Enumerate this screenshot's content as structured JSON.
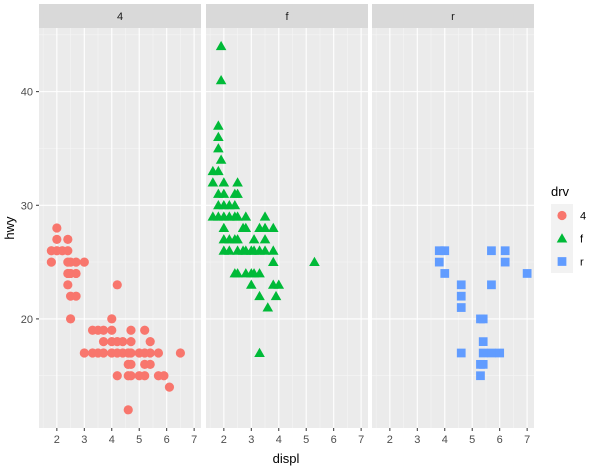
{
  "chart_data": {
    "type": "scatter",
    "xlabel": "displ",
    "ylabel": "hwy",
    "xlim": [
      1.35,
      7.25
    ],
    "ylim": [
      10.4,
      45.6
    ],
    "x_ticks": [
      2,
      3,
      4,
      5,
      6,
      7
    ],
    "x_tick_labels": [
      "2",
      "3",
      "4",
      "5",
      "6",
      "7"
    ],
    "y_ticks": [
      20,
      30,
      40
    ],
    "y_tick_labels": [
      "20",
      "30",
      "40"
    ],
    "grid": true,
    "facet_by": "drv",
    "panels": [
      {
        "label": "4",
        "color": "#F8766D",
        "shape": "circle",
        "points": [
          [
            1.8,
            26
          ],
          [
            1.8,
            25
          ],
          [
            2.0,
            28
          ],
          [
            2.0,
            27
          ],
          [
            2.0,
            26
          ],
          [
            2.2,
            26
          ],
          [
            2.4,
            27
          ],
          [
            2.4,
            26
          ],
          [
            2.4,
            25
          ],
          [
            2.4,
            24
          ],
          [
            2.4,
            23
          ],
          [
            2.5,
            25
          ],
          [
            2.5,
            24
          ],
          [
            2.5,
            22
          ],
          [
            2.5,
            20
          ],
          [
            2.7,
            25
          ],
          [
            2.7,
            24
          ],
          [
            2.7,
            22
          ],
          [
            3.0,
            25
          ],
          [
            3.0,
            17
          ],
          [
            3.3,
            19
          ],
          [
            3.3,
            17
          ],
          [
            3.5,
            19
          ],
          [
            3.5,
            17
          ],
          [
            3.7,
            19
          ],
          [
            3.7,
            18
          ],
          [
            3.7,
            17
          ],
          [
            4.0,
            20
          ],
          [
            4.0,
            19
          ],
          [
            4.0,
            18
          ],
          [
            4.0,
            17
          ],
          [
            4.2,
            23
          ],
          [
            4.2,
            18
          ],
          [
            4.2,
            17
          ],
          [
            4.2,
            15
          ],
          [
            4.4,
            18
          ],
          [
            4.4,
            17
          ],
          [
            4.6,
            17
          ],
          [
            4.6,
            16
          ],
          [
            4.6,
            15
          ],
          [
            4.6,
            12
          ],
          [
            4.7,
            19
          ],
          [
            4.7,
            18
          ],
          [
            4.7,
            17
          ],
          [
            4.7,
            16
          ],
          [
            4.7,
            15
          ],
          [
            5.0,
            17
          ],
          [
            5.0,
            15
          ],
          [
            5.2,
            19
          ],
          [
            5.2,
            17
          ],
          [
            5.2,
            16
          ],
          [
            5.2,
            15
          ],
          [
            5.4,
            18
          ],
          [
            5.4,
            17
          ],
          [
            5.4,
            16
          ],
          [
            5.7,
            17
          ],
          [
            5.7,
            15
          ],
          [
            5.9,
            15
          ],
          [
            6.1,
            14
          ],
          [
            6.5,
            17
          ]
        ]
      },
      {
        "label": "f",
        "color": "#00BA38",
        "shape": "triangle",
        "points": [
          [
            1.6,
            33
          ],
          [
            1.6,
            32
          ],
          [
            1.6,
            29
          ],
          [
            1.8,
            37
          ],
          [
            1.8,
            36
          ],
          [
            1.8,
            35
          ],
          [
            1.8,
            33
          ],
          [
            1.8,
            31
          ],
          [
            1.8,
            30
          ],
          [
            1.8,
            29
          ],
          [
            1.9,
            44
          ],
          [
            1.9,
            41
          ],
          [
            1.9,
            34
          ],
          [
            2.0,
            32
          ],
          [
            2.0,
            31
          ],
          [
            2.0,
            30
          ],
          [
            2.0,
            29
          ],
          [
            2.0,
            28
          ],
          [
            2.0,
            27
          ],
          [
            2.0,
            26
          ],
          [
            2.2,
            30
          ],
          [
            2.2,
            29
          ],
          [
            2.2,
            27
          ],
          [
            2.2,
            26
          ],
          [
            2.4,
            31
          ],
          [
            2.4,
            30
          ],
          [
            2.4,
            29
          ],
          [
            2.4,
            27
          ],
          [
            2.4,
            24
          ],
          [
            2.5,
            32
          ],
          [
            2.5,
            31
          ],
          [
            2.5,
            29
          ],
          [
            2.5,
            27
          ],
          [
            2.5,
            26
          ],
          [
            2.5,
            24
          ],
          [
            2.7,
            28
          ],
          [
            2.7,
            26
          ],
          [
            2.8,
            29
          ],
          [
            2.8,
            28
          ],
          [
            2.8,
            26
          ],
          [
            2.8,
            24
          ],
          [
            3.0,
            26
          ],
          [
            3.0,
            24
          ],
          [
            3.0,
            23
          ],
          [
            3.1,
            27
          ],
          [
            3.1,
            26
          ],
          [
            3.1,
            24
          ],
          [
            3.3,
            28
          ],
          [
            3.3,
            26
          ],
          [
            3.3,
            24
          ],
          [
            3.3,
            22
          ],
          [
            3.3,
            17
          ],
          [
            3.5,
            29
          ],
          [
            3.5,
            28
          ],
          [
            3.5,
            27
          ],
          [
            3.5,
            26
          ],
          [
            3.6,
            21
          ],
          [
            3.8,
            28
          ],
          [
            3.8,
            26
          ],
          [
            3.8,
            25
          ],
          [
            3.8,
            23
          ],
          [
            3.9,
            22
          ],
          [
            4.0,
            23
          ],
          [
            5.3,
            25
          ]
        ]
      },
      {
        "label": "r",
        "color": "#619CFF",
        "shape": "square",
        "points": [
          [
            3.8,
            26
          ],
          [
            3.8,
            25
          ],
          [
            4.0,
            26
          ],
          [
            4.0,
            24
          ],
          [
            4.6,
            23
          ],
          [
            4.6,
            22
          ],
          [
            4.6,
            21
          ],
          [
            4.6,
            17
          ],
          [
            5.3,
            20
          ],
          [
            5.3,
            16
          ],
          [
            5.3,
            15
          ],
          [
            5.4,
            20
          ],
          [
            5.4,
            18
          ],
          [
            5.4,
            17
          ],
          [
            5.4,
            16
          ],
          [
            5.7,
            26
          ],
          [
            5.7,
            23
          ],
          [
            5.7,
            17
          ],
          [
            6.0,
            17
          ],
          [
            6.2,
            26
          ],
          [
            6.2,
            25
          ],
          [
            7.0,
            24
          ]
        ]
      }
    ],
    "legend": {
      "title": "drv",
      "position": "right",
      "entries": [
        {
          "label": "4",
          "color": "#F8766D",
          "shape": "circle"
        },
        {
          "label": "f",
          "color": "#00BA38",
          "shape": "triangle"
        },
        {
          "label": "r",
          "color": "#619CFF",
          "shape": "square"
        }
      ]
    },
    "colors": {
      "panel_background": "#EBEBEB",
      "strip_background": "#D9D9D9",
      "grid_major": "#FFFFFF",
      "grid_minor": "#F5F5F5"
    }
  }
}
